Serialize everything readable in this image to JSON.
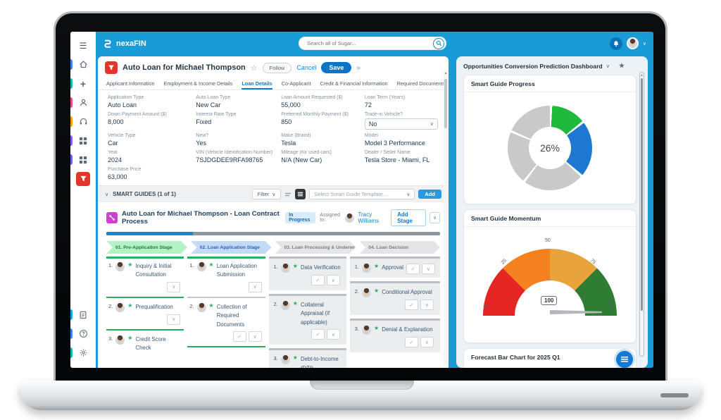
{
  "topbar": {
    "brand": "nexaFIN",
    "search_placeholder": "Search all of Sugar..."
  },
  "icons": {
    "menu": "☰",
    "plus": "+",
    "chevron_down": "∨",
    "double_chevron": "»",
    "star_outline": "☆",
    "star_filled": "★",
    "check": "✓",
    "up_arrow": "▲",
    "down_arrow": "▼"
  },
  "record": {
    "title": "Auto Loan for Michael Thompson",
    "follow": "Follow",
    "cancel": "Cancel",
    "save": "Save",
    "tabs": [
      {
        "label": "Applicant Information"
      },
      {
        "label": "Employment & Income Details"
      },
      {
        "label": "Loan Details"
      },
      {
        "label": "Co-Applicant"
      },
      {
        "label": "Credit & Financial Information"
      },
      {
        "label": "Required Documents"
      }
    ],
    "fields": [
      {
        "label": "Application Type",
        "value": "Auto Loan"
      },
      {
        "label": "Auto Loan Type",
        "value": "New Car"
      },
      {
        "label": "Loan Amount Requested ($)",
        "value": "55,000"
      },
      {
        "label": "Loan Term (Years)",
        "value": "72"
      },
      {
        "label": "Down Payment Amount ($)",
        "value": "8,000"
      },
      {
        "label": "Interest Rate Type",
        "value": "Fixed"
      },
      {
        "label": "Preferred Monthly Payment ($)",
        "value": "850"
      },
      {
        "label": "Trade-in Vehicle?",
        "value": "No"
      },
      {
        "label": "Vehicle Type",
        "value": "Car"
      },
      {
        "label": "New?",
        "value": "Yes"
      },
      {
        "label": "Make (Brand)",
        "value": "Tesla"
      },
      {
        "label": "Model",
        "value": "Model 3 Performance"
      },
      {
        "label": "Year",
        "value": "2024"
      },
      {
        "label": "VIN (Vehicle Identification Number)",
        "value": "7SJDGDEE9RFA98765"
      },
      {
        "label": "Mileage (for used cars)",
        "value": "N/A (New Car)"
      },
      {
        "label": "Dealer / Seller Name",
        "value": "Tesla Store - Miami, FL"
      },
      {
        "label": "Purchase Price",
        "value": "63,000"
      }
    ]
  },
  "smart_guides": {
    "title": "SMART GUIDES (1 of 1)",
    "filter": "Filter",
    "template_placeholder": "Select Smart Guide Template...",
    "add": "Add",
    "guide": {
      "name": "Auto Loan for Michael Thompson - Loan Contract Process",
      "status": "In Progress",
      "assigned_to": "Assigned to:",
      "assignee": "Tracy Williams",
      "add_stage": "Add Stage",
      "progress_percent": 26,
      "stages": [
        {
          "label": "01. Pre-Application Stage"
        },
        {
          "label": "02. Loan Application Stage"
        },
        {
          "label": "03. Loan Processing & Underwrit..."
        },
        {
          "label": "04. Loan Decision"
        }
      ],
      "columns": [
        {
          "tasks": [
            {
              "num": "1.",
              "title": "Inquiry & Initial Consultation"
            },
            {
              "num": "2.",
              "title": "Prequalification"
            },
            {
              "num": "3.",
              "title": "Credit Score Check"
            }
          ]
        },
        {
          "tasks": [
            {
              "num": "1.",
              "title": "Loan Application Submission"
            },
            {
              "num": "2.",
              "title": "Collection of Required Documents"
            }
          ]
        },
        {
          "tasks": [
            {
              "num": "1.",
              "title": "Data Verification"
            },
            {
              "num": "2.",
              "title": "Collateral Appraisal (if applicable)"
            },
            {
              "num": "3.",
              "title": "Debt-to-Income (DTI)"
            }
          ]
        },
        {
          "tasks": [
            {
              "num": "1.",
              "title": "Approval"
            },
            {
              "num": "2.",
              "title": "Conditional Approval"
            },
            {
              "num": "3.",
              "title": "Denial & Explanation"
            }
          ]
        }
      ]
    }
  },
  "dashboard": {
    "title": "Opportunities Conversion Prediction Dashboard"
  },
  "chart_data": [
    {
      "type": "pie",
      "title": "Smart Guide Progress",
      "donut": true,
      "center_label": "26%",
      "legend_position": "none",
      "segments": [
        {
          "label": "segment-green",
          "value": 14,
          "color": "#1fb93c"
        },
        {
          "label": "segment-blue",
          "value": 22,
          "color": "#1e78d2"
        },
        {
          "label": "segment-gray-1",
          "value": 24,
          "color": "#c9c9c9"
        },
        {
          "label": "segment-gray-2",
          "value": 21,
          "color": "#c9c9c9"
        },
        {
          "label": "segment-gray-3",
          "value": 19,
          "color": "#c9c9c9"
        }
      ]
    },
    {
      "type": "gauge",
      "title": "Smart Guide Momentum",
      "min": 0,
      "max": 100,
      "value": 100,
      "value_label": "100",
      "ticks": [
        "0",
        "25",
        "50",
        "75",
        "100"
      ],
      "segments": [
        {
          "from": 0,
          "to": 25,
          "color": "#e42522"
        },
        {
          "from": 25,
          "to": 50,
          "color": "#f58020"
        },
        {
          "from": 50,
          "to": 75,
          "color": "#e8a33d"
        },
        {
          "from": 75,
          "to": 100,
          "color": "#2e7d32"
        }
      ]
    },
    {
      "type": "bar",
      "title": "Forecast Bar Chart for 2025 Q1"
    }
  ],
  "colors": {
    "topbar_blue": "#199bd7",
    "save_blue": "#0a74c9",
    "module_red": "#e2362c",
    "progress_blue": "#1487cf",
    "progress_track": "#8e979d",
    "stage_green_bg": "#b4f1c4",
    "stage_blue_bg": "#c3daf6",
    "task_star_green": "#27ae60",
    "badge_bg": "#d9ecfb"
  }
}
